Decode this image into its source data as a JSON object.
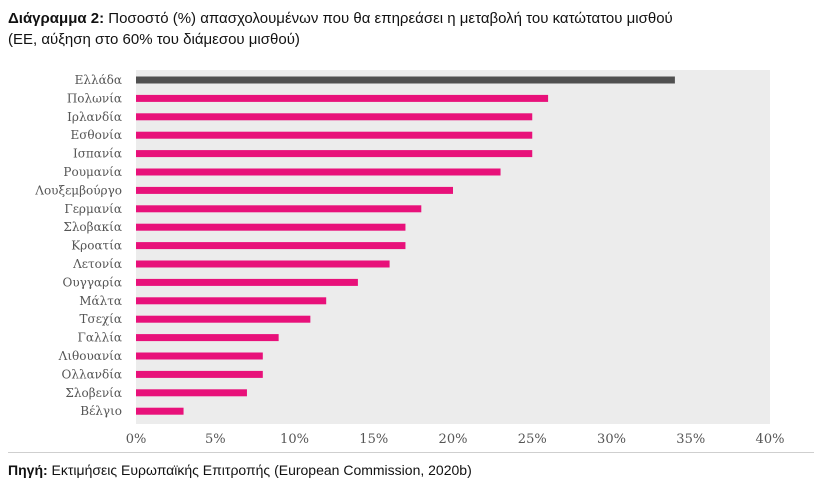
{
  "header": {
    "title_lead": "Διάγραμμα 2:",
    "title_rest": " Ποσοστό (%) απασχολουμένων που θα επηρεάσει η μεταβολή του κατώτατου μισθού",
    "title_line2": "(ΕΕ, αύξηση στο 60% του διάμεσου μισθού)"
  },
  "footer": {
    "source_lead": "Πηγή:",
    "source_rest": " Εκτιμήσεις Ευρωπαϊκής Επιτροπής (European Commission, 2020b)"
  },
  "colors": {
    "highlight": "#505050",
    "bar": "#e8117a",
    "plot_background": "#ececec",
    "tick_text": "#555555"
  },
  "chart_data": {
    "type": "bar",
    "orientation": "horizontal",
    "categories": [
      "Ελλάδα",
      "Πολωνία",
      "Ιρλανδία",
      "Εσθονία",
      "Ισπανία",
      "Ρουμανία",
      "Λουξεμβούργο",
      "Γερμανία",
      "Σλοβακία",
      "Κροατία",
      "Λετονία",
      "Ουγγαρία",
      "Μάλτα",
      "Τσεχία",
      "Γαλλία",
      "Λιθουανία",
      "Ολλανδία",
      "Σλοβενία",
      "Βέλγιο"
    ],
    "values": [
      34,
      26,
      25,
      25,
      25,
      23,
      20,
      18,
      17,
      17,
      16,
      14,
      12,
      11,
      9,
      8,
      8,
      7,
      3
    ],
    "highlight_category": "Ελλάδα",
    "xlim": [
      0,
      40
    ],
    "xticks": [
      0,
      5,
      10,
      15,
      20,
      25,
      30,
      35,
      40
    ],
    "tick_suffix": "%",
    "grid": false
  }
}
